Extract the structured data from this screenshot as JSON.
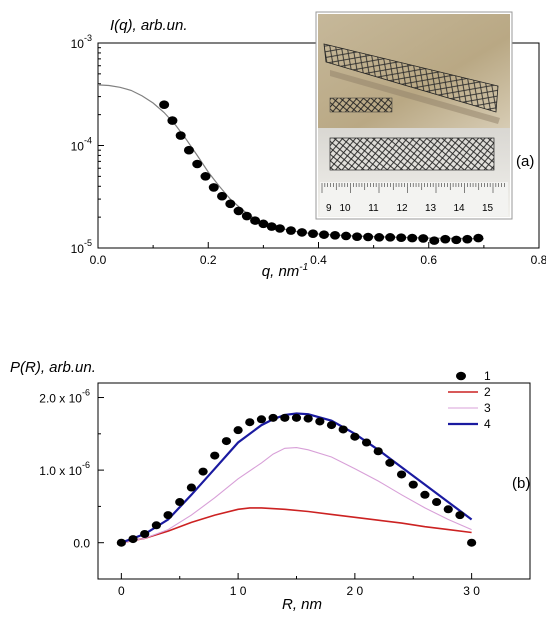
{
  "chart_data": [
    {
      "type": "scatter",
      "panel_label": "(a)",
      "ylabel": "I(q), arb.un.",
      "xlabel_base": "q, nm",
      "xlabel_sup": "-1",
      "yscale": "log",
      "xlim": [
        0.0,
        0.8
      ],
      "ylim": [
        1e-05,
        0.001
      ],
      "x_ticks": [
        "0.0",
        "0.2",
        "0.4",
        "0.6",
        "0.8"
      ],
      "y_ticks": [
        {
          "value": 1e-05,
          "base": "10",
          "exp": "-5"
        },
        {
          "value": 0.0001,
          "base": "10",
          "exp": "-4"
        },
        {
          "value": 0.001,
          "base": "10",
          "exp": "-3"
        }
      ],
      "series": [
        {
          "kind": "points",
          "x": [
            0.12,
            0.135,
            0.15,
            0.165,
            0.18,
            0.195,
            0.21,
            0.225,
            0.24,
            0.255,
            0.27,
            0.285,
            0.3,
            0.315,
            0.33,
            0.35,
            0.37,
            0.39,
            0.41,
            0.43,
            0.45,
            0.47,
            0.49,
            0.51,
            0.53,
            0.55,
            0.57,
            0.59,
            0.61,
            0.63,
            0.65,
            0.67,
            0.69
          ],
          "y": [
            0.00025,
            0.000175,
            0.000125,
            9e-05,
            6.6e-05,
            5e-05,
            3.9e-05,
            3.2e-05,
            2.7e-05,
            2.3e-05,
            2.05e-05,
            1.85e-05,
            1.72e-05,
            1.62e-05,
            1.55e-05,
            1.48e-05,
            1.42e-05,
            1.38e-05,
            1.35e-05,
            1.33e-05,
            1.31e-05,
            1.29e-05,
            1.28e-05,
            1.27e-05,
            1.27e-05,
            1.26e-05,
            1.25e-05,
            1.24e-05,
            1.18e-05,
            1.22e-05,
            1.2e-05,
            1.22e-05,
            1.25e-05
          ]
        },
        {
          "kind": "line",
          "color": "#808080",
          "x": [
            0.0,
            0.02,
            0.04,
            0.06,
            0.08,
            0.1,
            0.12,
            0.14,
            0.16,
            0.18,
            0.2,
            0.22,
            0.24,
            0.26,
            0.28,
            0.3,
            0.32,
            0.34,
            0.36,
            0.38,
            0.4,
            0.45,
            0.5,
            0.55,
            0.6,
            0.65,
            0.7
          ],
          "y": [
            0.00039,
            0.000385,
            0.00037,
            0.000345,
            0.000305,
            0.00026,
            0.00021,
            0.00016,
            0.000115,
            8e-05,
            5.5e-05,
            4e-05,
            3e-05,
            2.4e-05,
            2e-05,
            1.77e-05,
            1.62e-05,
            1.52e-05,
            1.45e-05,
            1.4e-05,
            1.37e-05,
            1.32e-05,
            1.29e-05,
            1.27e-05,
            1.25e-05,
            1.24e-05,
            1.23e-05
          ]
        }
      ],
      "inset": {
        "description_hidden": true,
        "ruler_labels": [
          "10",
          "11",
          "12",
          "13",
          "14",
          "15"
        ],
        "ruler_prefix": "9"
      }
    },
    {
      "type": "line",
      "panel_label": "(b)",
      "ylabel": "P(R), arb.un.",
      "xlabel": "R, nm",
      "xlim": [
        -2,
        35
      ],
      "ylim": [
        -0.5,
        2.2
      ],
      "y_unit_exp": "-6",
      "x_ticks": [
        "0",
        "1 0",
        "2 0",
        "3 0"
      ],
      "x_tick_values": [
        0,
        10,
        20,
        30
      ],
      "y_ticks": [
        {
          "value": 0.0,
          "label": "0.0",
          "exp": ""
        },
        {
          "value": 1.0,
          "label": "1.0 x 10",
          "exp": "-6"
        },
        {
          "value": 2.0,
          "label": "2.0 x 10",
          "exp": "-6"
        }
      ],
      "series": [
        {
          "name": "1",
          "kind": "points",
          "color": "#000000",
          "x": [
            0,
            1,
            2,
            3,
            4,
            5,
            6,
            7,
            8,
            9,
            10,
            11,
            12,
            13,
            14,
            15,
            16,
            17,
            18,
            19,
            20,
            21,
            22,
            23,
            24,
            25,
            26,
            27,
            28,
            29,
            30
          ],
          "y": [
            0.0,
            0.05,
            0.12,
            0.24,
            0.38,
            0.56,
            0.76,
            0.98,
            1.2,
            1.4,
            1.55,
            1.66,
            1.7,
            1.72,
            1.72,
            1.72,
            1.71,
            1.67,
            1.62,
            1.56,
            1.46,
            1.38,
            1.26,
            1.1,
            0.94,
            0.8,
            0.66,
            0.56,
            0.46,
            0.38,
            0.0
          ]
        },
        {
          "name": "2",
          "kind": "line",
          "color": "#cc2222",
          "x": [
            0,
            2,
            4,
            6,
            8,
            10,
            11,
            12,
            14,
            16,
            18,
            20,
            22,
            24,
            26,
            28,
            30
          ],
          "y": [
            0.0,
            0.06,
            0.16,
            0.28,
            0.38,
            0.46,
            0.48,
            0.48,
            0.46,
            0.43,
            0.39,
            0.35,
            0.31,
            0.27,
            0.22,
            0.18,
            0.14
          ]
        },
        {
          "name": "3",
          "kind": "line",
          "color": "#d8a0d8",
          "x": [
            0,
            2,
            4,
            6,
            8,
            10,
            12,
            13,
            14,
            15,
            16,
            18,
            20,
            22,
            24,
            26,
            28,
            30
          ],
          "y": [
            0.0,
            0.06,
            0.18,
            0.38,
            0.62,
            0.88,
            1.1,
            1.22,
            1.3,
            1.31,
            1.28,
            1.18,
            1.02,
            0.85,
            0.66,
            0.48,
            0.32,
            0.18
          ]
        },
        {
          "name": "4",
          "kind": "line",
          "color": "#1a1aa0",
          "x": [
            0,
            2,
            4,
            6,
            8,
            10,
            12,
            13,
            14,
            15,
            16,
            18,
            20,
            22,
            24,
            26,
            28,
            30
          ],
          "y": [
            0.0,
            0.12,
            0.32,
            0.66,
            1.02,
            1.38,
            1.62,
            1.7,
            1.76,
            1.78,
            1.77,
            1.68,
            1.5,
            1.28,
            1.04,
            0.8,
            0.56,
            0.32
          ]
        }
      ],
      "legend_position": "top-right"
    }
  ]
}
